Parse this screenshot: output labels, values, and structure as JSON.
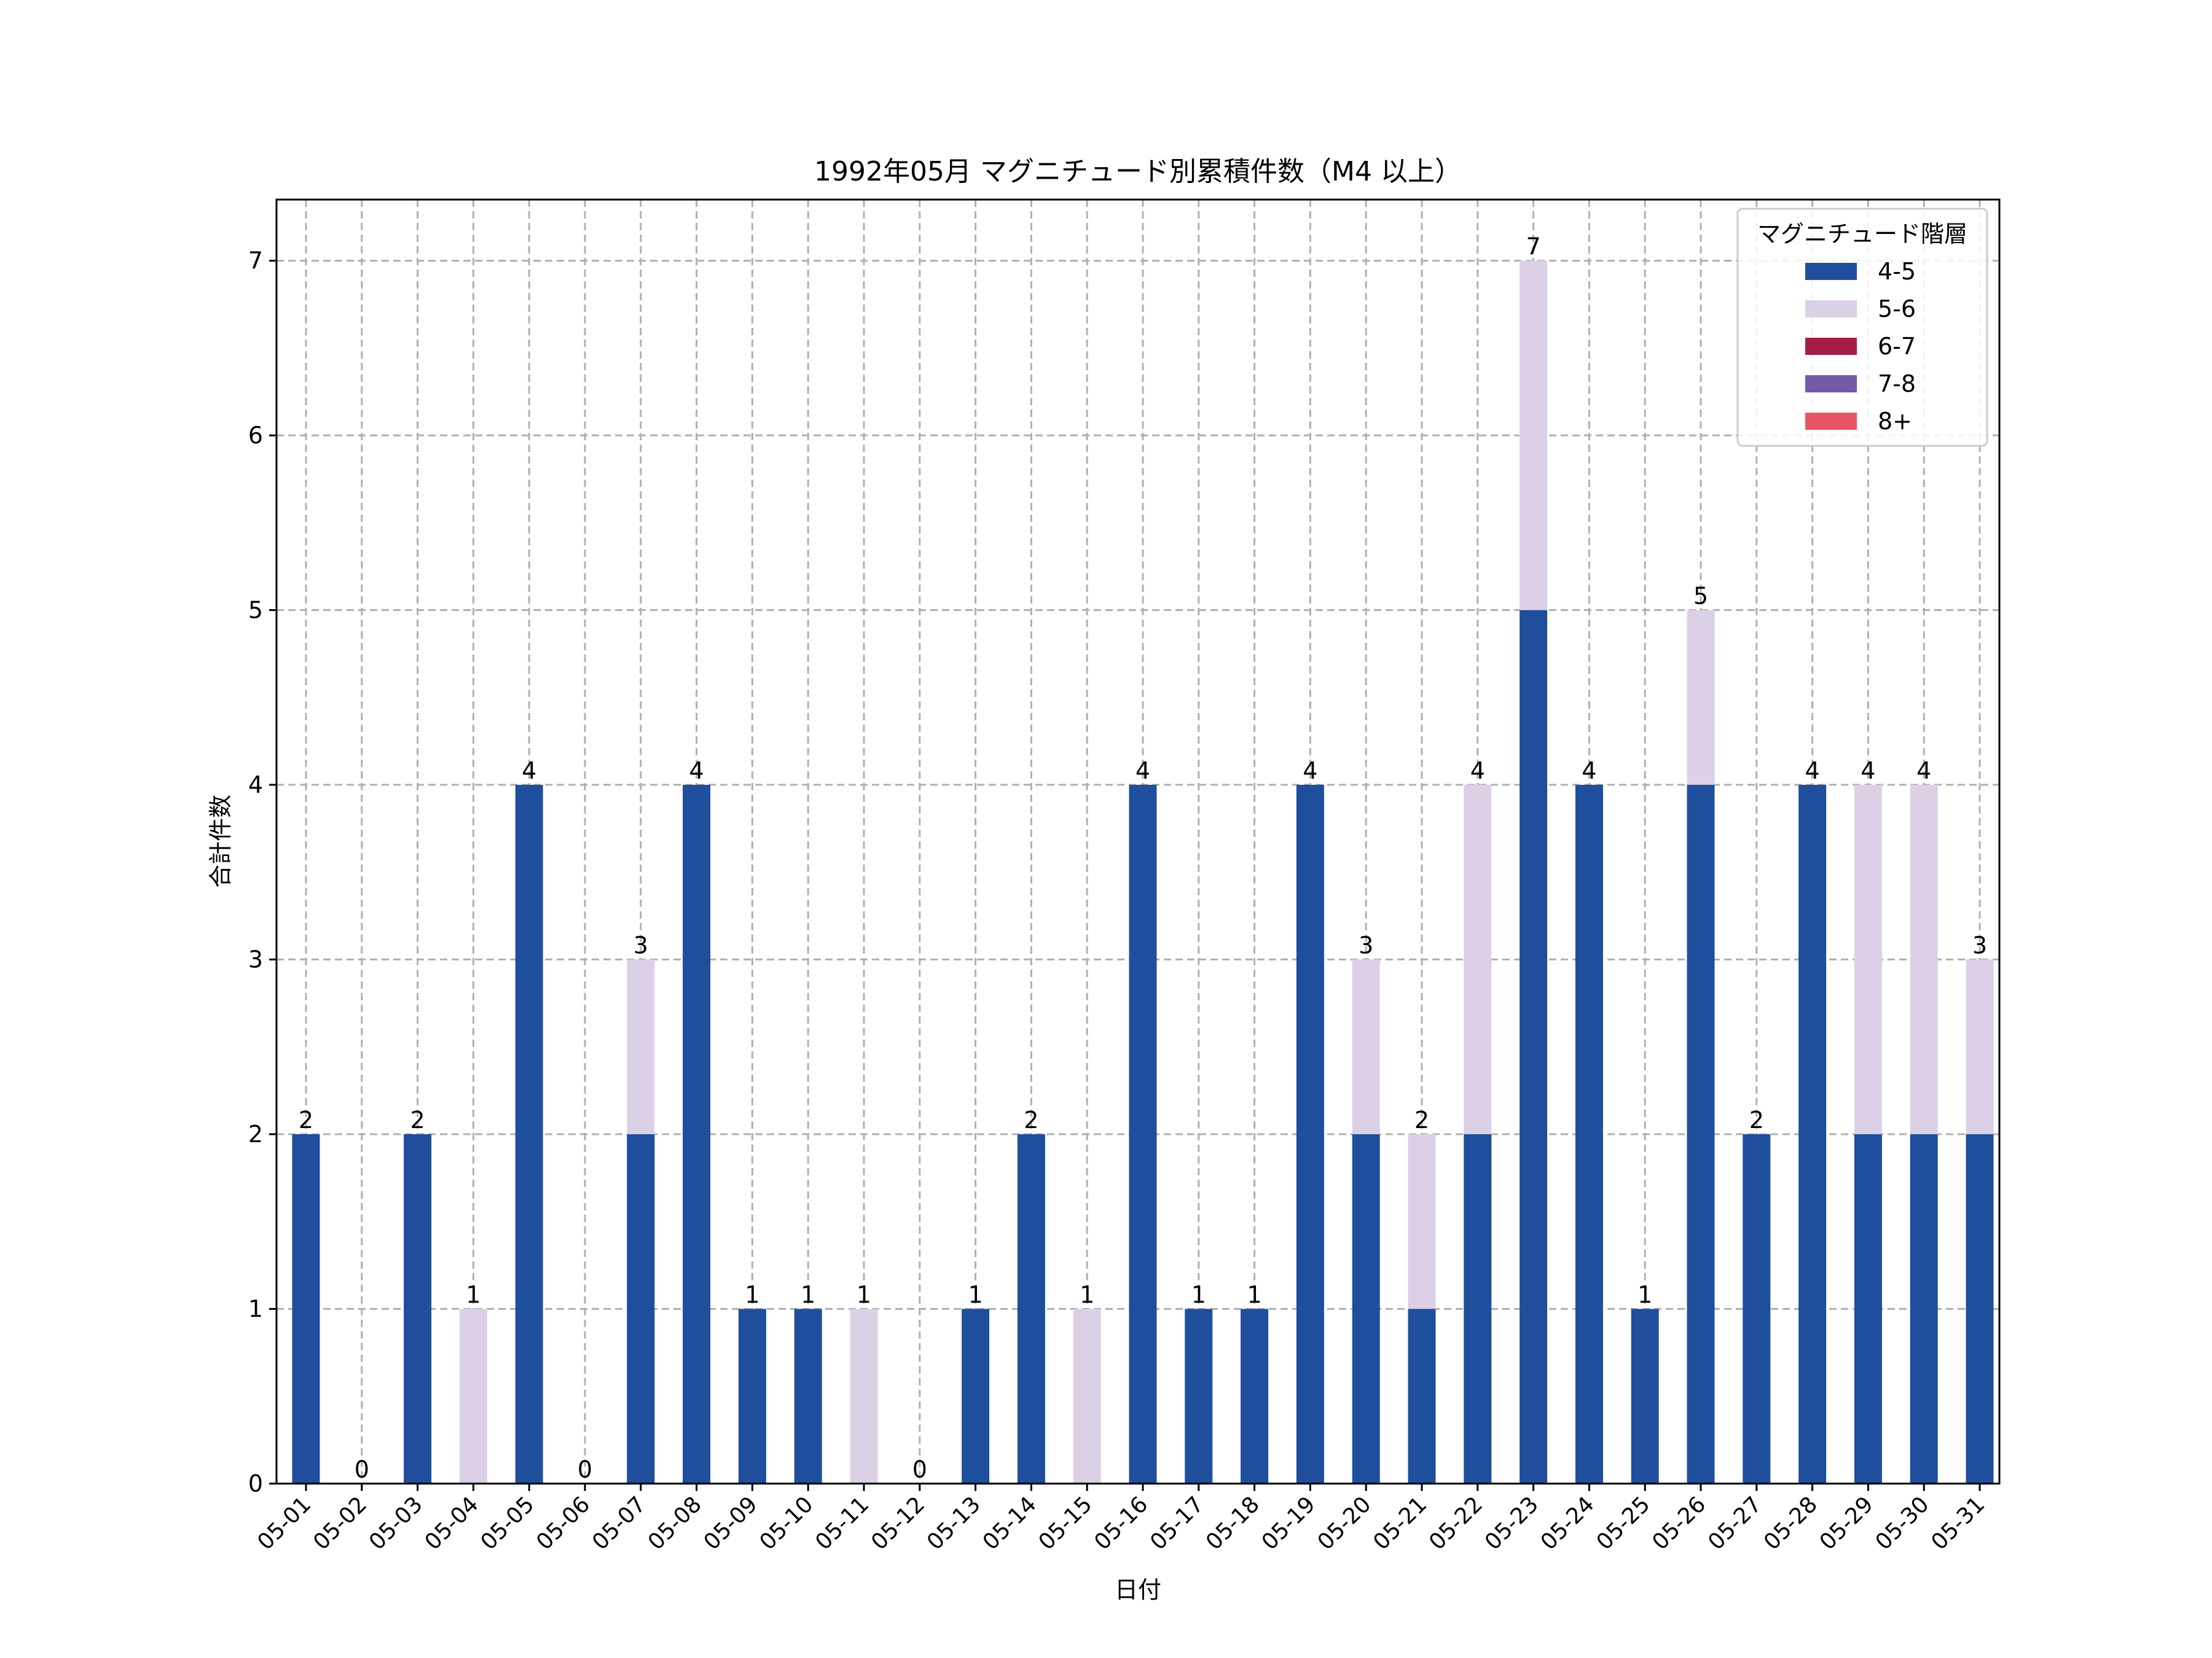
{
  "chart_data": {
    "type": "bar",
    "stacked": true,
    "title": "1992年05月 マグニチュード別累積件数（M4 以上）",
    "xlabel": "日付",
    "ylabel": "合計件数",
    "ylim": [
      0,
      7.35
    ],
    "yticks": [
      0,
      1,
      2,
      3,
      4,
      5,
      6,
      7
    ],
    "grid": true,
    "legend_position": "top-right",
    "legend_title": "マグニチュード階層",
    "categories": [
      "05-01",
      "05-02",
      "05-03",
      "05-04",
      "05-05",
      "05-06",
      "05-07",
      "05-08",
      "05-09",
      "05-10",
      "05-11",
      "05-12",
      "05-13",
      "05-14",
      "05-15",
      "05-16",
      "05-17",
      "05-18",
      "05-19",
      "05-20",
      "05-21",
      "05-22",
      "05-23",
      "05-24",
      "05-25",
      "05-26",
      "05-27",
      "05-28",
      "05-29",
      "05-30",
      "05-31"
    ],
    "series": [
      {
        "name": "4-5",
        "color": "#1f4e9c",
        "values": [
          2,
          0,
          2,
          0,
          4,
          0,
          2,
          4,
          1,
          1,
          0,
          0,
          1,
          2,
          0,
          4,
          1,
          1,
          4,
          2,
          1,
          2,
          5,
          4,
          1,
          4,
          2,
          4,
          2,
          2,
          2
        ]
      },
      {
        "name": "5-6",
        "color": "#dcd0e6",
        "values": [
          0,
          0,
          0,
          1,
          0,
          0,
          1,
          0,
          0,
          0,
          1,
          0,
          0,
          0,
          1,
          0,
          0,
          0,
          0,
          1,
          1,
          2,
          2,
          0,
          0,
          1,
          0,
          0,
          2,
          2,
          1
        ]
      },
      {
        "name": "6-7",
        "color": "#a51f45",
        "values": [
          0,
          0,
          0,
          0,
          0,
          0,
          0,
          0,
          0,
          0,
          0,
          0,
          0,
          0,
          0,
          0,
          0,
          0,
          0,
          0,
          0,
          0,
          0,
          0,
          0,
          0,
          0,
          0,
          0,
          0,
          0
        ]
      },
      {
        "name": "7-8",
        "color": "#7459a8",
        "values": [
          0,
          0,
          0,
          0,
          0,
          0,
          0,
          0,
          0,
          0,
          0,
          0,
          0,
          0,
          0,
          0,
          0,
          0,
          0,
          0,
          0,
          0,
          0,
          0,
          0,
          0,
          0,
          0,
          0,
          0,
          0
        ]
      },
      {
        "name": "8+",
        "color": "#e85566",
        "values": [
          0,
          0,
          0,
          0,
          0,
          0,
          0,
          0,
          0,
          0,
          0,
          0,
          0,
          0,
          0,
          0,
          0,
          0,
          0,
          0,
          0,
          0,
          0,
          0,
          0,
          0,
          0,
          0,
          0,
          0,
          0
        ]
      }
    ],
    "totals": [
      2,
      0,
      2,
      1,
      4,
      0,
      3,
      4,
      1,
      1,
      1,
      0,
      1,
      2,
      1,
      4,
      1,
      1,
      4,
      3,
      2,
      4,
      7,
      4,
      1,
      5,
      2,
      4,
      4,
      4,
      3
    ]
  }
}
